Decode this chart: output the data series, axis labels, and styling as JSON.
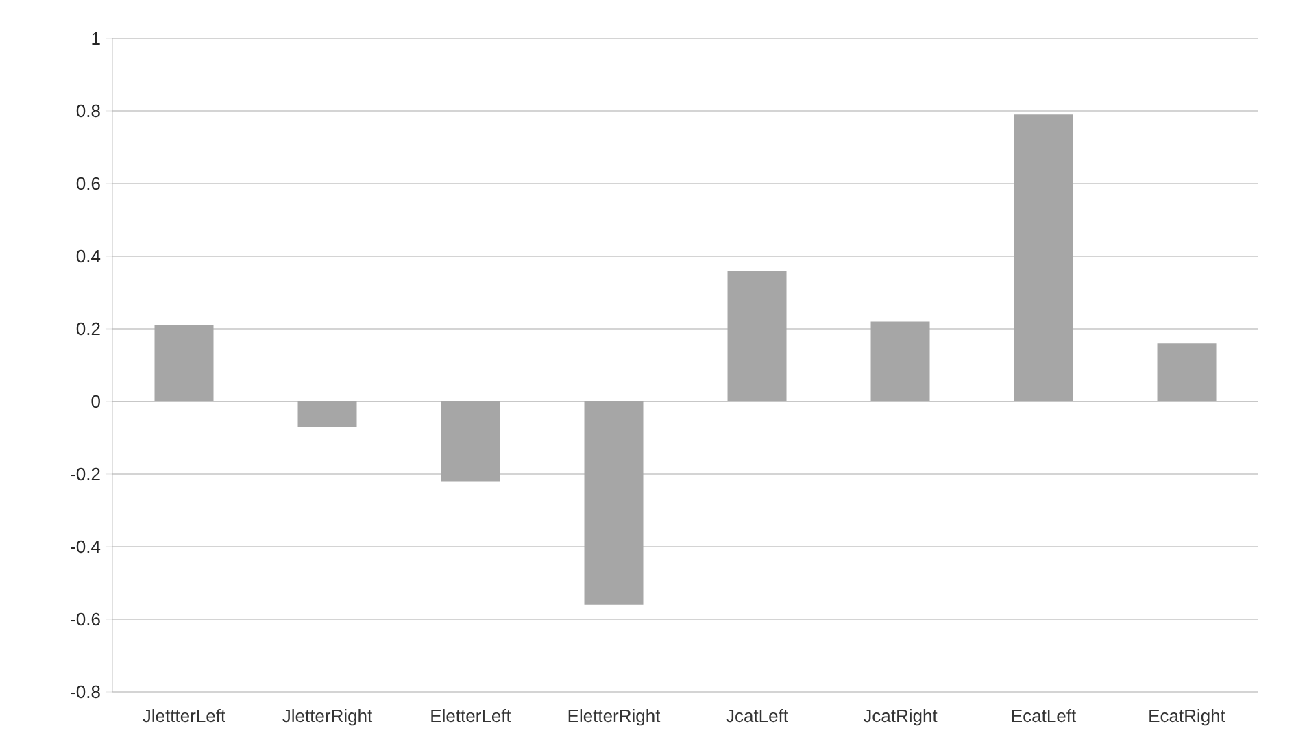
{
  "chart_data": {
    "type": "bar",
    "categories": [
      "JlettterLeft",
      "JletterRight",
      "EletterLeft",
      "EletterRight",
      "JcatLeft",
      "JcatRight",
      "EcatLeft",
      "EcatRight"
    ],
    "values": [
      0.21,
      -0.07,
      -0.22,
      -0.56,
      0.36,
      0.22,
      0.79,
      0.16
    ],
    "color": "#a6a6a6",
    "ylim": [
      -0.8,
      1
    ],
    "yticks": [
      -0.8,
      -0.6,
      -0.4,
      -0.2,
      0,
      0.2,
      0.4,
      0.6,
      0.8,
      1
    ],
    "grid": "y"
  }
}
